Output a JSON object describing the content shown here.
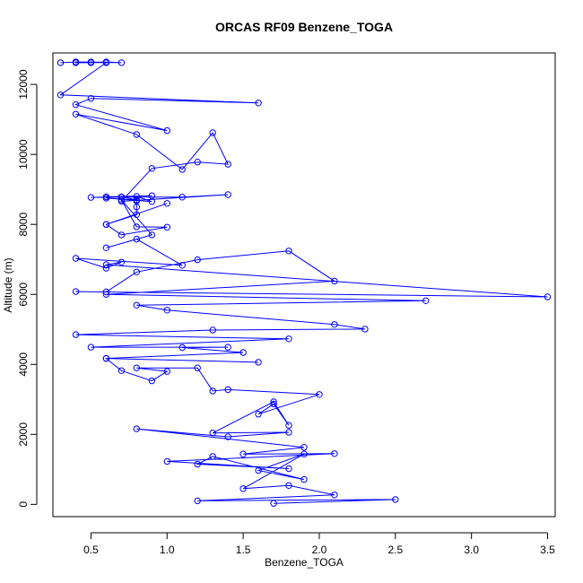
{
  "chart_data": {
    "type": "line",
    "title": "ORCAS RF09 Benzene_TOGA",
    "xlabel": "Benzene_TOGA",
    "ylabel": "Altitude (m)",
    "xlim": [
      0.25,
      3.55
    ],
    "ylim": [
      -350,
      12900
    ],
    "xticks": [
      0.5,
      1.0,
      1.5,
      2.0,
      2.5,
      3.0,
      3.5
    ],
    "xtick_labels": [
      "0.5",
      "1.0",
      "1.5",
      "2.0",
      "2.5",
      "3.0",
      "3.5"
    ],
    "yticks": [
      0,
      2000,
      4000,
      6000,
      8000,
      10000,
      12000
    ],
    "ytick_labels": [
      "0",
      "2000",
      "4000",
      "6000",
      "8000",
      "10000",
      "12000"
    ],
    "grid": false,
    "marker": "open-circle",
    "color": "#0000ff",
    "series": [
      {
        "x": [
          0.3,
          0.4,
          0.4,
          0.5,
          0.6,
          0.7,
          0.5,
          0.4,
          0.6,
          0.3,
          1.6,
          0.5,
          0.4,
          1.0,
          0.4,
          0.8,
          1.1,
          1.3,
          1.4,
          1.2,
          0.9,
          0.7,
          1.4,
          1.1,
          0.7,
          0.5,
          0.9,
          0.6,
          0.7,
          0.8,
          0.6,
          0.9,
          0.8,
          0.8,
          0.8,
          0.8,
          0.6,
          1.0,
          0.6,
          0.7,
          1.0,
          0.8,
          0.7,
          0.9,
          0.6,
          0.8,
          1.1,
          0.4,
          0.6,
          0.7,
          0.6,
          3.5,
          0.4,
          0.6,
          0.8,
          1.2,
          1.8,
          2.1,
          0.6,
          2.7,
          0.8,
          1.0,
          2.1,
          2.3,
          1.3,
          0.4,
          1.8,
          0.5,
          1.4,
          1.1,
          1.5,
          0.6,
          1.6,
          0.6,
          0.7,
          0.9,
          1.0,
          0.8,
          1.2,
          1.3,
          1.4,
          2.0,
          1.6,
          1.7,
          1.8,
          1.7,
          1.3,
          1.8,
          1.4,
          0.8,
          1.9,
          1.5,
          2.1,
          1.0,
          1.8,
          1.2,
          1.3,
          1.9,
          1.6,
          1.9,
          1.5,
          1.8,
          2.1,
          1.2,
          2.5,
          1.7
        ],
        "y": [
          12620,
          12640,
          12620,
          12620,
          12640,
          12620,
          12640,
          12640,
          12620,
          11700,
          11470,
          11600,
          11420,
          10680,
          11150,
          10570,
          9570,
          10620,
          9720,
          9780,
          9600,
          8660,
          8850,
          8780,
          8780,
          8770,
          8820,
          8790,
          8790,
          8700,
          8750,
          8650,
          8800,
          8670,
          8500,
          8280,
          8000,
          8600,
          8000,
          7700,
          7920,
          7930,
          8700,
          7700,
          7330,
          7580,
          6830,
          7030,
          6750,
          6920,
          6850,
          5930,
          6080,
          6070,
          6640,
          6990,
          7240,
          6380,
          6000,
          5820,
          5690,
          5550,
          5140,
          5010,
          4980,
          4850,
          4730,
          4490,
          4490,
          4480,
          4340,
          4170,
          4060,
          4170,
          3820,
          3530,
          3800,
          3900,
          3900,
          3240,
          3280,
          3140,
          2580,
          2870,
          2260,
          2930,
          2040,
          2060,
          1930,
          2160,
          1630,
          1440,
          1450,
          1230,
          1020,
          1150,
          1370,
          710,
          970,
          1440,
          450,
          540,
          270,
          100,
          140,
          30
        ]
      }
    ]
  }
}
